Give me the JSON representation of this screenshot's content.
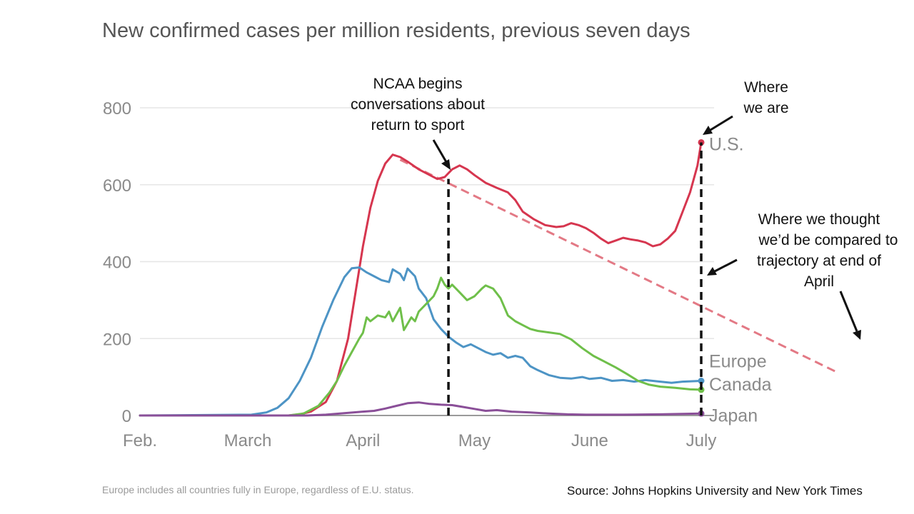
{
  "chart_data": {
    "type": "line",
    "title": "New confirmed cases per million residents, previous seven days",
    "xlabel": "",
    "ylabel": "",
    "x_ticks": [
      {
        "label": "Feb.",
        "day": 0
      },
      {
        "label": "March",
        "day": 29
      },
      {
        "label": "April",
        "day": 60
      },
      {
        "label": "May",
        "day": 90
      },
      {
        "label": "June",
        "day": 121
      },
      {
        "label": "July",
        "day": 151
      }
    ],
    "y_ticks": [
      0,
      200,
      400,
      600,
      800
    ],
    "ylim": [
      0,
      850
    ],
    "grid": true,
    "series": [
      {
        "name": "U.S.",
        "color": "#d6364f",
        "points": [
          [
            0,
            0
          ],
          [
            30,
            0
          ],
          [
            40,
            0
          ],
          [
            43,
            3
          ],
          [
            46,
            10
          ],
          [
            50,
            35
          ],
          [
            53,
            90
          ],
          [
            56,
            200
          ],
          [
            58,
            320
          ],
          [
            60,
            440
          ],
          [
            62,
            540
          ],
          [
            64,
            610
          ],
          [
            66,
            655
          ],
          [
            68,
            678
          ],
          [
            70,
            672
          ],
          [
            72,
            660
          ],
          [
            75,
            640
          ],
          [
            78,
            625
          ],
          [
            80,
            615
          ],
          [
            82,
            620
          ],
          [
            84,
            640
          ],
          [
            86,
            650
          ],
          [
            88,
            640
          ],
          [
            90,
            625
          ],
          [
            93,
            605
          ],
          [
            96,
            592
          ],
          [
            99,
            580
          ],
          [
            101,
            560
          ],
          [
            103,
            530
          ],
          [
            106,
            510
          ],
          [
            109,
            495
          ],
          [
            112,
            490
          ],
          [
            114,
            492
          ],
          [
            116,
            500
          ],
          [
            118,
            495
          ],
          [
            120,
            487
          ],
          [
            122,
            475
          ],
          [
            124,
            460
          ],
          [
            126,
            448
          ],
          [
            128,
            455
          ],
          [
            130,
            462
          ],
          [
            132,
            458
          ],
          [
            134,
            455
          ],
          [
            136,
            450
          ],
          [
            138,
            440
          ],
          [
            140,
            445
          ],
          [
            142,
            460
          ],
          [
            144,
            480
          ],
          [
            146,
            530
          ],
          [
            148,
            580
          ],
          [
            150,
            650
          ],
          [
            151,
            710
          ]
        ]
      },
      {
        "name": "Europe",
        "color": "#4d94c5",
        "points": [
          [
            0,
            0
          ],
          [
            30,
            2
          ],
          [
            34,
            8
          ],
          [
            37,
            20
          ],
          [
            40,
            45
          ],
          [
            43,
            90
          ],
          [
            46,
            150
          ],
          [
            49,
            230
          ],
          [
            52,
            300
          ],
          [
            55,
            360
          ],
          [
            57,
            383
          ],
          [
            59,
            385
          ],
          [
            61,
            372
          ],
          [
            63,
            362
          ],
          [
            65,
            352
          ],
          [
            67,
            347
          ],
          [
            68,
            380
          ],
          [
            70,
            368
          ],
          [
            71,
            352
          ],
          [
            72,
            382
          ],
          [
            74,
            362
          ],
          [
            75,
            330
          ],
          [
            77,
            305
          ],
          [
            79,
            250
          ],
          [
            81,
            225
          ],
          [
            83,
            205
          ],
          [
            85,
            190
          ],
          [
            87,
            178
          ],
          [
            89,
            185
          ],
          [
            91,
            175
          ],
          [
            93,
            165
          ],
          [
            95,
            158
          ],
          [
            97,
            162
          ],
          [
            99,
            150
          ],
          [
            101,
            155
          ],
          [
            103,
            150
          ],
          [
            105,
            128
          ],
          [
            107,
            118
          ],
          [
            110,
            105
          ],
          [
            113,
            98
          ],
          [
            116,
            96
          ],
          [
            119,
            100
          ],
          [
            121,
            95
          ],
          [
            124,
            98
          ],
          [
            127,
            90
          ],
          [
            130,
            92
          ],
          [
            133,
            88
          ],
          [
            136,
            92
          ],
          [
            140,
            88
          ],
          [
            143,
            85
          ],
          [
            146,
            88
          ],
          [
            151,
            90
          ]
        ]
      },
      {
        "name": "Canada",
        "color": "#6fbf4a",
        "points": [
          [
            0,
            0
          ],
          [
            40,
            0
          ],
          [
            44,
            5
          ],
          [
            48,
            25
          ],
          [
            51,
            60
          ],
          [
            53,
            90
          ],
          [
            55,
            130
          ],
          [
            57,
            165
          ],
          [
            59,
            200
          ],
          [
            60,
            215
          ],
          [
            61,
            255
          ],
          [
            62,
            245
          ],
          [
            64,
            260
          ],
          [
            66,
            255
          ],
          [
            67,
            270
          ],
          [
            68,
            245
          ],
          [
            70,
            280
          ],
          [
            71,
            222
          ],
          [
            73,
            255
          ],
          [
            74,
            245
          ],
          [
            75,
            270
          ],
          [
            77,
            290
          ],
          [
            79,
            310
          ],
          [
            80,
            330
          ],
          [
            81,
            358
          ],
          [
            82,
            340
          ],
          [
            83,
            330
          ],
          [
            84,
            340
          ],
          [
            86,
            320
          ],
          [
            88,
            300
          ],
          [
            90,
            310
          ],
          [
            92,
            330
          ],
          [
            93,
            338
          ],
          [
            95,
            330
          ],
          [
            97,
            305
          ],
          [
            99,
            260
          ],
          [
            101,
            245
          ],
          [
            103,
            235
          ],
          [
            105,
            225
          ],
          [
            107,
            220
          ],
          [
            110,
            216
          ],
          [
            113,
            212
          ],
          [
            116,
            198
          ],
          [
            119,
            175
          ],
          [
            122,
            155
          ],
          [
            125,
            140
          ],
          [
            128,
            125
          ],
          [
            131,
            108
          ],
          [
            134,
            90
          ],
          [
            137,
            80
          ],
          [
            140,
            75
          ],
          [
            144,
            72
          ],
          [
            148,
            68
          ],
          [
            151,
            67
          ]
        ]
      },
      {
        "name": "Japan",
        "color": "#8a4f98",
        "points": [
          [
            0,
            0
          ],
          [
            45,
            0
          ],
          [
            50,
            2
          ],
          [
            55,
            6
          ],
          [
            60,
            10
          ],
          [
            63,
            12
          ],
          [
            66,
            18
          ],
          [
            69,
            25
          ],
          [
            72,
            32
          ],
          [
            75,
            34
          ],
          [
            78,
            30
          ],
          [
            81,
            28
          ],
          [
            84,
            27
          ],
          [
            87,
            22
          ],
          [
            90,
            17
          ],
          [
            93,
            12
          ],
          [
            96,
            14
          ],
          [
            100,
            10
          ],
          [
            105,
            8
          ],
          [
            110,
            5
          ],
          [
            115,
            3
          ],
          [
            120,
            2
          ],
          [
            130,
            2
          ],
          [
            140,
            3
          ],
          [
            151,
            5
          ]
        ]
      }
    ],
    "end_labels": [
      {
        "series": "U.S.",
        "text": "U.S."
      },
      {
        "series": "Europe",
        "text": "Europe"
      },
      {
        "series": "Canada",
        "text": "Canada"
      },
      {
        "series": "Japan",
        "text": "Japan"
      }
    ],
    "reference_lines": [
      {
        "type": "vertical",
        "day": 83,
        "from": 0,
        "to": 615
      },
      {
        "type": "vertical",
        "day": 151,
        "from": 0,
        "to": 710
      }
    ],
    "trend_projection": {
      "color": "#e37985",
      "from": [
        70,
        665
      ],
      "to": [
        187,
        115
      ]
    },
    "annotations": [
      {
        "lines": [
          "NCAA begins",
          "conversations about",
          "return to sport"
        ]
      },
      {
        "lines": [
          "Where",
          "we are"
        ]
      },
      {
        "lines": [
          "Where we thought",
          "we’d be compared to",
          "trajectory at end of",
          "April"
        ]
      }
    ],
    "footnote": "Europe includes all countries fully in Europe, regardless of E.U. status.",
    "source": "Source: Johns Hopkins University and New York Times"
  }
}
